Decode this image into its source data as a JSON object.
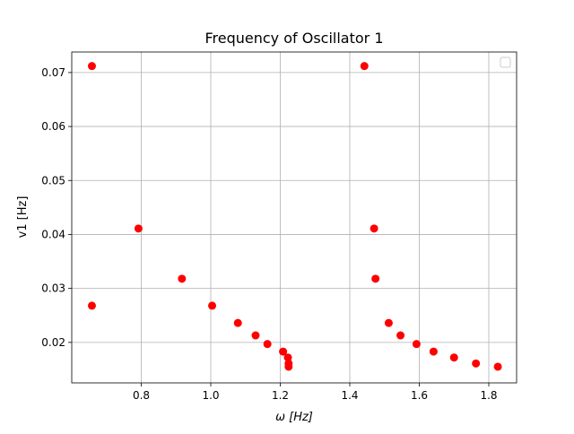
{
  "chart_data": {
    "type": "scatter",
    "title": "Frequency of Oscillator 1",
    "xlabel": "ω [Hz]",
    "ylabel": "v1 [Hz]",
    "xlim": [
      0.6,
      1.88
    ],
    "ylim": [
      0.0125,
      0.0738
    ],
    "xticks": [
      0.8,
      1.0,
      1.2,
      1.4,
      1.6,
      1.8
    ],
    "xtick_labels": [
      "0.8",
      "1.0",
      "1.2",
      "1.4",
      "1.6",
      "1.8"
    ],
    "yticks": [
      0.02,
      0.03,
      0.04,
      0.05,
      0.06,
      0.07
    ],
    "ytick_labels": [
      "0.02",
      "0.03",
      "0.04",
      "0.05",
      "0.06",
      "0.07"
    ],
    "grid": true,
    "legend": "top-right (empty)",
    "marker_color": "#ff0000",
    "series": [
      {
        "points": [
          {
            "x": 0.658,
            "y": 0.0712
          },
          {
            "x": 0.658,
            "y": 0.0268
          },
          {
            "x": 0.792,
            "y": 0.0411
          },
          {
            "x": 0.917,
            "y": 0.0318
          },
          {
            "x": 1.004,
            "y": 0.0268
          },
          {
            "x": 1.078,
            "y": 0.0236
          },
          {
            "x": 1.129,
            "y": 0.0213
          },
          {
            "x": 1.163,
            "y": 0.0197
          },
          {
            "x": 1.208,
            "y": 0.0183
          },
          {
            "x": 1.222,
            "y": 0.0172
          },
          {
            "x": 1.224,
            "y": 0.0155
          },
          {
            "x": 1.224,
            "y": 0.0161
          },
          {
            "x": 1.442,
            "y": 0.0712
          },
          {
            "x": 1.47,
            "y": 0.0411
          },
          {
            "x": 1.474,
            "y": 0.0318
          },
          {
            "x": 1.512,
            "y": 0.0236
          },
          {
            "x": 1.546,
            "y": 0.0213
          },
          {
            "x": 1.592,
            "y": 0.0197
          },
          {
            "x": 1.641,
            "y": 0.0183
          },
          {
            "x": 1.7,
            "y": 0.0172
          },
          {
            "x": 1.763,
            "y": 0.0161
          },
          {
            "x": 1.826,
            "y": 0.0155
          }
        ]
      }
    ]
  }
}
